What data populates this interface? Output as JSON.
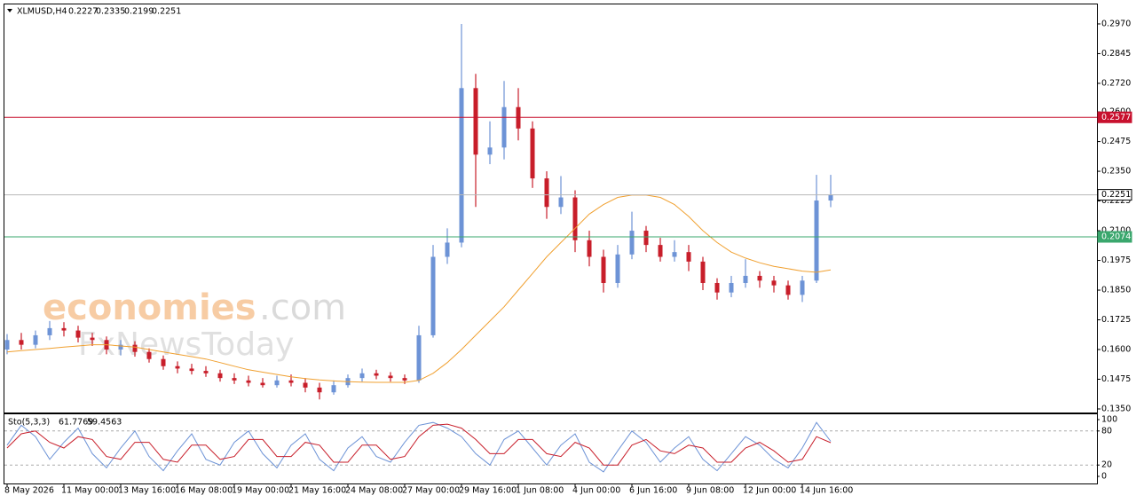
{
  "header": {
    "symbol": "XLMUSD,H4",
    "ohlc": [
      0.2227,
      0.2335,
      0.2199,
      0.2251
    ]
  },
  "watermark": [
    "economies",
    ".com",
    "FxNewsToday"
  ],
  "chart_data": [
    {
      "type": "candlestick",
      "categories": [
        "8 May 2026",
        null,
        null,
        null,
        "11 May 00:00",
        null,
        null,
        null,
        "13 May 16:00",
        null,
        null,
        null,
        "16 May 08:00",
        null,
        null,
        null,
        "19 May 00:00",
        null,
        null,
        null,
        "21 May 16:00",
        null,
        null,
        null,
        "24 May 08:00",
        null,
        null,
        null,
        "27 May 00:00",
        null,
        null,
        null,
        "29 May 16:00",
        null,
        null,
        null,
        "1 Jun 08:00",
        null,
        null,
        null,
        "4 Jun 00:00",
        null,
        null,
        null,
        "6 Jun 16:00",
        null,
        null,
        null,
        "9 Jun 08:00",
        null,
        null,
        null,
        "12 Jun 00:00",
        null,
        null,
        null,
        "14 Jun 16:00",
        null,
        null
      ],
      "open": [
        0.16,
        0.164,
        0.162,
        0.166,
        0.169,
        0.168,
        0.165,
        0.164,
        0.16,
        0.162,
        0.159,
        0.156,
        0.153,
        0.152,
        0.151,
        0.15,
        0.148,
        0.147,
        0.146,
        0.145,
        0.147,
        0.146,
        0.144,
        0.142,
        0.145,
        0.148,
        0.15,
        0.149,
        0.148,
        0.147,
        0.166,
        0.199,
        0.205,
        0.27,
        0.242,
        0.245,
        0.262,
        0.253,
        0.232,
        0.22,
        0.224,
        0.206,
        0.199,
        0.188,
        0.2,
        0.21,
        0.204,
        0.199,
        0.201,
        0.197,
        0.188,
        0.184,
        0.188,
        0.191,
        0.189,
        0.187,
        0.183,
        0.189,
        0.2227
      ],
      "high": [
        0.1665,
        0.167,
        0.168,
        0.172,
        0.1715,
        0.17,
        0.167,
        0.1655,
        0.164,
        0.1635,
        0.1605,
        0.1575,
        0.155,
        0.154,
        0.153,
        0.1515,
        0.15,
        0.149,
        0.148,
        0.149,
        0.1495,
        0.148,
        0.146,
        0.147,
        0.1495,
        0.152,
        0.1515,
        0.1505,
        0.1495,
        0.17,
        0.204,
        0.211,
        0.297,
        0.276,
        0.256,
        0.273,
        0.27,
        0.256,
        0.235,
        0.233,
        0.227,
        0.21,
        0.202,
        0.204,
        0.218,
        0.212,
        0.207,
        0.206,
        0.204,
        0.199,
        0.19,
        0.191,
        0.198,
        0.193,
        0.191,
        0.189,
        0.191,
        0.2335,
        0.2335
      ],
      "low": [
        0.158,
        0.16,
        0.1605,
        0.164,
        0.1655,
        0.163,
        0.1615,
        0.158,
        0.1575,
        0.157,
        0.1545,
        0.1515,
        0.15,
        0.1495,
        0.1485,
        0.1465,
        0.1455,
        0.1445,
        0.144,
        0.144,
        0.1445,
        0.142,
        0.139,
        0.141,
        0.144,
        0.1465,
        0.1475,
        0.1465,
        0.1455,
        0.146,
        0.165,
        0.196,
        0.203,
        0.22,
        0.238,
        0.24,
        0.248,
        0.228,
        0.215,
        0.217,
        0.201,
        0.195,
        0.184,
        0.186,
        0.198,
        0.201,
        0.197,
        0.197,
        0.193,
        0.185,
        0.181,
        0.182,
        0.186,
        0.186,
        0.184,
        0.181,
        0.18,
        0.188,
        0.2199
      ],
      "close": [
        0.164,
        0.162,
        0.166,
        0.169,
        0.168,
        0.165,
        0.164,
        0.16,
        0.162,
        0.159,
        0.156,
        0.153,
        0.152,
        0.151,
        0.15,
        0.148,
        0.147,
        0.146,
        0.145,
        0.147,
        0.146,
        0.144,
        0.142,
        0.145,
        0.148,
        0.15,
        0.149,
        0.148,
        0.147,
        0.166,
        0.199,
        0.205,
        0.27,
        0.242,
        0.245,
        0.262,
        0.253,
        0.232,
        0.22,
        0.224,
        0.206,
        0.199,
        0.188,
        0.2,
        0.21,
        0.204,
        0.199,
        0.201,
        0.197,
        0.188,
        0.184,
        0.188,
        0.191,
        0.189,
        0.187,
        0.183,
        0.189,
        0.2227,
        0.2251
      ],
      "up_color": "#6d93d6",
      "down_color": "#c81e2a",
      "overlay": {
        "color": "#f0a030",
        "values": [
          0.159,
          0.1595,
          0.16,
          0.1605,
          0.161,
          0.1615,
          0.162,
          0.162,
          0.1615,
          0.161,
          0.16,
          0.159,
          0.158,
          0.157,
          0.156,
          0.1545,
          0.153,
          0.1515,
          0.1505,
          0.1495,
          0.1485,
          0.1478,
          0.1472,
          0.1468,
          0.1465,
          0.1463,
          0.1462,
          0.1462,
          0.1462,
          0.147,
          0.15,
          0.1545,
          0.16,
          0.166,
          0.172,
          0.178,
          0.185,
          0.192,
          0.199,
          0.205,
          0.211,
          0.217,
          0.221,
          0.224,
          0.225,
          0.225,
          0.224,
          0.221,
          0.216,
          0.21,
          0.205,
          0.201,
          0.1985,
          0.1965,
          0.195,
          0.194,
          0.193,
          0.1925,
          0.1935
        ]
      },
      "levels": [
        {
          "value": 0.2577,
          "color": "#c8102e"
        },
        {
          "value": 0.2251,
          "color": "#b8b8b8"
        },
        {
          "value": 0.2074,
          "color": "#3aa76d"
        }
      ],
      "ylim": [
        0.1335,
        0.3052
      ],
      "yticks": [
        {
          "value": 0.135,
          "label": "0.1350"
        },
        {
          "value": 0.1475,
          "label": "0.1475"
        },
        {
          "value": 0.16,
          "label": "0.1600"
        },
        {
          "value": 0.1725,
          "label": "0.1725"
        },
        {
          "value": 0.185,
          "label": "0.1850"
        },
        {
          "value": 0.1975,
          "label": "0.1975"
        },
        {
          "value": 0.21,
          "label": "0.2100"
        },
        {
          "value": 0.2225,
          "label": "0.2225"
        },
        {
          "value": 0.235,
          "label": "0.2350"
        },
        {
          "value": 0.2475,
          "label": "0.2475"
        },
        {
          "value": 0.26,
          "label": "0.2600"
        },
        {
          "value": 0.272,
          "label": "0.2720"
        },
        {
          "value": 0.2845,
          "label": "0.2845"
        },
        {
          "value": 0.297,
          "label": "0.2970"
        }
      ]
    },
    {
      "type": "line",
      "label": "Sto(5,3,3)",
      "readout": [
        61.7769,
        59.4563
      ],
      "series": [
        {
          "color": "#6d93d6",
          "values": [
            55,
            90,
            70,
            30,
            60,
            85,
            40,
            15,
            50,
            80,
            35,
            10,
            45,
            75,
            30,
            20,
            60,
            80,
            40,
            15,
            55,
            75,
            30,
            10,
            50,
            70,
            35,
            25,
            60,
            90,
            95,
            85,
            70,
            40,
            20,
            65,
            80,
            50,
            20,
            55,
            75,
            25,
            8,
            45,
            80,
            60,
            25,
            50,
            70,
            30,
            10,
            40,
            70,
            55,
            30,
            15,
            50,
            95,
            61.7769
          ]
        },
        {
          "color": "#c81e2a",
          "values": [
            50,
            75,
            80,
            60,
            50,
            70,
            65,
            35,
            30,
            60,
            60,
            30,
            25,
            55,
            55,
            30,
            35,
            65,
            65,
            35,
            35,
            60,
            55,
            25,
            25,
            55,
            55,
            30,
            35,
            70,
            90,
            92,
            85,
            65,
            40,
            40,
            65,
            65,
            40,
            35,
            60,
            50,
            20,
            20,
            55,
            65,
            45,
            40,
            55,
            50,
            25,
            25,
            50,
            60,
            45,
            25,
            30,
            70,
            59.4563
          ]
        }
      ],
      "levels": [
        80,
        20
      ],
      "ylim": [
        -12.5,
        109.4
      ],
      "yticks": [
        100,
        80,
        20,
        0
      ]
    }
  ]
}
